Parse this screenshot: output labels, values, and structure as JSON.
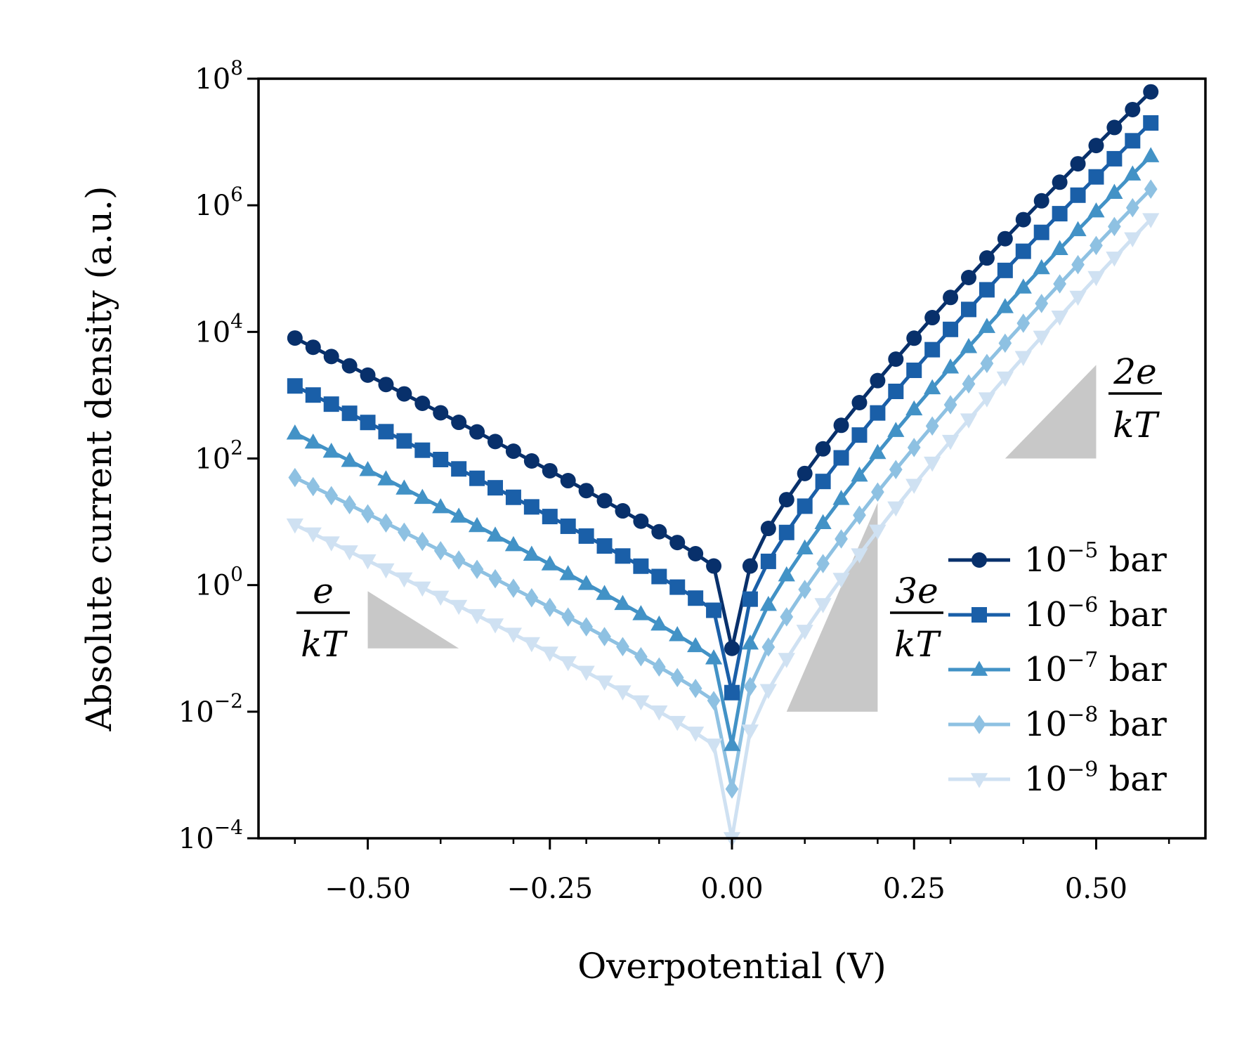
{
  "chart_data": {
    "type": "line",
    "title": "",
    "xlabel": "Overpotential (V)",
    "ylabel": "Absolute current density (a.u.)",
    "xlim": [
      -0.65,
      0.65
    ],
    "ylim": [
      0.0001,
      100000000
    ],
    "yscale": "log",
    "grid": false,
    "legend_position": "center-right",
    "x_ticks": [
      {
        "value": -0.5,
        "label": "−0.50"
      },
      {
        "value": -0.25,
        "label": "−0.25"
      },
      {
        "value": 0.0,
        "label": "0.00"
      },
      {
        "value": 0.25,
        "label": "0.25"
      },
      {
        "value": 0.5,
        "label": "0.50"
      }
    ],
    "y_ticks": [
      {
        "value": 0.0001,
        "base": "10",
        "exp": "−4"
      },
      {
        "value": 0.01,
        "base": "10",
        "exp": "−2"
      },
      {
        "value": 1,
        "base": "10",
        "exp": "0"
      },
      {
        "value": 100,
        "base": "10",
        "exp": "2"
      },
      {
        "value": 10000,
        "base": "10",
        "exp": "4"
      },
      {
        "value": 1000000,
        "base": "10",
        "exp": "6"
      },
      {
        "value": 100000000,
        "base": "10",
        "exp": "8"
      }
    ],
    "x_range": {
      "start": -0.6,
      "end": 0.575,
      "step": 0.025
    },
    "series": [
      {
        "legend_base": "10",
        "legend_exp": "−5",
        "legend_unit": "bar",
        "color": "#08306b",
        "marker": "circle",
        "center_value": 0.1,
        "anodic": [
          2.0,
          62000000.0,
          4.6
        ],
        "cathodic": [
          2.0,
          8000
        ]
      },
      {
        "legend_base": "10",
        "legend_exp": "−6",
        "legend_unit": "bar",
        "color": "#1a5fa8",
        "marker": "square",
        "center_value": 0.02,
        "anodic": [
          0.6,
          20000000.0,
          4.5
        ],
        "cathodic": [
          0.4,
          1400
        ]
      },
      {
        "legend_base": "10",
        "legend_exp": "−7",
        "legend_unit": "bar",
        "color": "#4292c6",
        "marker": "triangle-up",
        "center_value": 0.003,
        "anodic": [
          0.12,
          6000000.0,
          4.4
        ],
        "cathodic": [
          0.07,
          250
        ]
      },
      {
        "legend_base": "10",
        "legend_exp": "−8",
        "legend_unit": "bar",
        "color": "#8ec1e2",
        "marker": "diamond",
        "center_value": 0.0006,
        "anodic": [
          0.025,
          1800000.0,
          4.3
        ],
        "cathodic": [
          0.015,
          50
        ]
      },
      {
        "legend_base": "10",
        "legend_exp": "−9",
        "legend_unit": "bar",
        "color": "#cfe1f2",
        "marker": "triangle-down",
        "center_value": 0.0001,
        "anodic": [
          0.005,
          600000.0,
          4.2
        ],
        "cathodic": [
          0.003,
          9
        ]
      }
    ],
    "slope_triangles": [
      {
        "numerator": "e",
        "denominator": "kT",
        "x": [
          -0.5,
          -0.375
        ],
        "y": [
          0.1,
          0.8
        ],
        "direction": "down"
      },
      {
        "numerator": "3e",
        "denominator": "kT",
        "x": [
          0.075,
          0.2
        ],
        "y": [
          0.01,
          20
        ],
        "direction": "up"
      },
      {
        "numerator": "2e",
        "denominator": "kT",
        "x": [
          0.375,
          0.5
        ],
        "y": [
          100,
          3000
        ],
        "direction": "up"
      }
    ],
    "triangle_color": "#c8c8c8"
  }
}
